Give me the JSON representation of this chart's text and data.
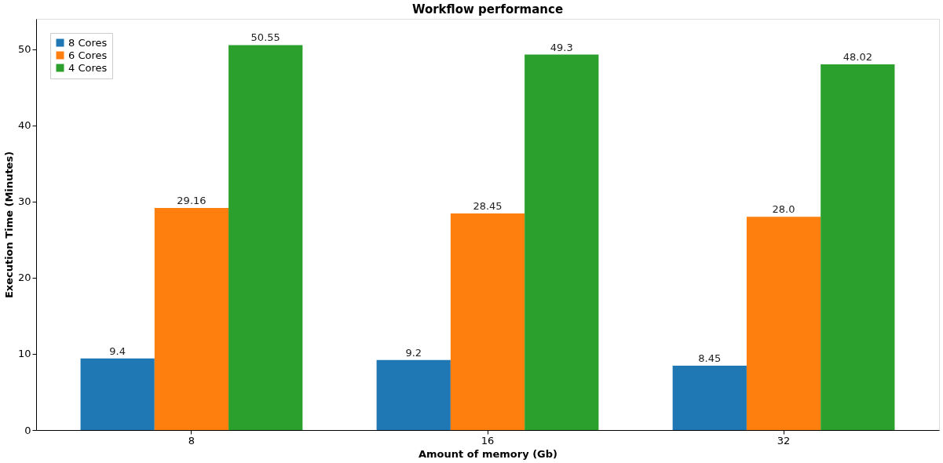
{
  "chart_data": {
    "type": "bar",
    "title": "Workflow performance",
    "xlabel": "Amount of memory (Gb)",
    "ylabel": "Execution Time (Minutes)",
    "categories": [
      "8",
      "16",
      "32"
    ],
    "series": [
      {
        "name": "8 Cores",
        "color": "#1f77b4",
        "values": [
          9.4,
          9.2,
          8.45
        ],
        "value_labels": [
          "9.4",
          "9.2",
          "8.45"
        ]
      },
      {
        "name": "6 Cores",
        "color": "#ff7f0e",
        "values": [
          29.16,
          28.45,
          28.0
        ],
        "value_labels": [
          "29.16",
          "28.45",
          "28.0"
        ]
      },
      {
        "name": "4 Cores",
        "color": "#2ca02c",
        "values": [
          50.55,
          49.3,
          48.02
        ],
        "value_labels": [
          "50.55",
          "49.3",
          "48.02"
        ]
      }
    ],
    "ylim": [
      0,
      54
    ],
    "yticks": [
      0,
      10,
      20,
      30,
      40,
      50
    ],
    "legend": "top left",
    "grid": false
  }
}
